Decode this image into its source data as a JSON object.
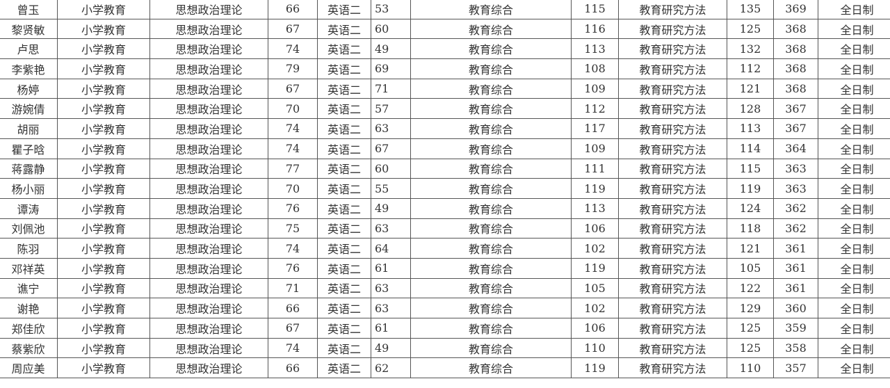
{
  "rows": [
    {
      "name": "曾玉",
      "major": "小学教育",
      "politics": "思想政治理论",
      "politics_score": "66",
      "english": "英语二",
      "english_score": "53",
      "subject3": "教育综合",
      "subject3_score": "115",
      "subject4": "教育研究方法",
      "subject4_score": "135",
      "total": "369",
      "mode": "全日制"
    },
    {
      "name": "黎贤敏",
      "major": "小学教育",
      "politics": "思想政治理论",
      "politics_score": "67",
      "english": "英语二",
      "english_score": "60",
      "subject3": "教育综合",
      "subject3_score": "116",
      "subject4": "教育研究方法",
      "subject4_score": "125",
      "total": "368",
      "mode": "全日制"
    },
    {
      "name": "卢思",
      "major": "小学教育",
      "politics": "思想政治理论",
      "politics_score": "74",
      "english": "英语二",
      "english_score": "49",
      "subject3": "教育综合",
      "subject3_score": "113",
      "subject4": "教育研究方法",
      "subject4_score": "132",
      "total": "368",
      "mode": "全日制"
    },
    {
      "name": "李紫艳",
      "major": "小学教育",
      "politics": "思想政治理论",
      "politics_score": "79",
      "english": "英语二",
      "english_score": "69",
      "subject3": "教育综合",
      "subject3_score": "108",
      "subject4": "教育研究方法",
      "subject4_score": "112",
      "total": "368",
      "mode": "全日制"
    },
    {
      "name": "杨婷",
      "major": "小学教育",
      "politics": "思想政治理论",
      "politics_score": "67",
      "english": "英语二",
      "english_score": "71",
      "subject3": "教育综合",
      "subject3_score": "109",
      "subject4": "教育研究方法",
      "subject4_score": "121",
      "total": "368",
      "mode": "全日制"
    },
    {
      "name": "游婉倩",
      "major": "小学教育",
      "politics": "思想政治理论",
      "politics_score": "70",
      "english": "英语二",
      "english_score": "57",
      "subject3": "教育综合",
      "subject3_score": "112",
      "subject4": "教育研究方法",
      "subject4_score": "128",
      "total": "367",
      "mode": "全日制"
    },
    {
      "name": "胡丽",
      "major": "小学教育",
      "politics": "思想政治理论",
      "politics_score": "74",
      "english": "英语二",
      "english_score": "63",
      "subject3": "教育综合",
      "subject3_score": "117",
      "subject4": "教育研究方法",
      "subject4_score": "113",
      "total": "367",
      "mode": "全日制"
    },
    {
      "name": "瞿子晗",
      "major": "小学教育",
      "politics": "思想政治理论",
      "politics_score": "74",
      "english": "英语二",
      "english_score": "67",
      "subject3": "教育综合",
      "subject3_score": "109",
      "subject4": "教育研究方法",
      "subject4_score": "114",
      "total": "364",
      "mode": "全日制"
    },
    {
      "name": "蒋露静",
      "major": "小学教育",
      "politics": "思想政治理论",
      "politics_score": "77",
      "english": "英语二",
      "english_score": "60",
      "subject3": "教育综合",
      "subject3_score": "111",
      "subject4": "教育研究方法",
      "subject4_score": "115",
      "total": "363",
      "mode": "全日制"
    },
    {
      "name": "杨小丽",
      "major": "小学教育",
      "politics": "思想政治理论",
      "politics_score": "70",
      "english": "英语二",
      "english_score": "55",
      "subject3": "教育综合",
      "subject3_score": "119",
      "subject4": "教育研究方法",
      "subject4_score": "119",
      "total": "363",
      "mode": "全日制"
    },
    {
      "name": "谭涛",
      "major": "小学教育",
      "politics": "思想政治理论",
      "politics_score": "76",
      "english": "英语二",
      "english_score": "49",
      "subject3": "教育综合",
      "subject3_score": "113",
      "subject4": "教育研究方法",
      "subject4_score": "124",
      "total": "362",
      "mode": "全日制"
    },
    {
      "name": "刘佩池",
      "major": "小学教育",
      "politics": "思想政治理论",
      "politics_score": "75",
      "english": "英语二",
      "english_score": "63",
      "subject3": "教育综合",
      "subject3_score": "106",
      "subject4": "教育研究方法",
      "subject4_score": "118",
      "total": "362",
      "mode": "全日制"
    },
    {
      "name": "陈羽",
      "major": "小学教育",
      "politics": "思想政治理论",
      "politics_score": "74",
      "english": "英语二",
      "english_score": "64",
      "subject3": "教育综合",
      "subject3_score": "102",
      "subject4": "教育研究方法",
      "subject4_score": "121",
      "total": "361",
      "mode": "全日制"
    },
    {
      "name": "邓祥英",
      "major": "小学教育",
      "politics": "思想政治理论",
      "politics_score": "76",
      "english": "英语二",
      "english_score": "61",
      "subject3": "教育综合",
      "subject3_score": "119",
      "subject4": "教育研究方法",
      "subject4_score": "105",
      "total": "361",
      "mode": "全日制"
    },
    {
      "name": "谯宁",
      "major": "小学教育",
      "politics": "思想政治理论",
      "politics_score": "71",
      "english": "英语二",
      "english_score": "63",
      "subject3": "教育综合",
      "subject3_score": "105",
      "subject4": "教育研究方法",
      "subject4_score": "122",
      "total": "361",
      "mode": "全日制"
    },
    {
      "name": "谢艳",
      "major": "小学教育",
      "politics": "思想政治理论",
      "politics_score": "66",
      "english": "英语二",
      "english_score": "63",
      "subject3": "教育综合",
      "subject3_score": "102",
      "subject4": "教育研究方法",
      "subject4_score": "129",
      "total": "360",
      "mode": "全日制"
    },
    {
      "name": "郑佳欣",
      "major": "小学教育",
      "politics": "思想政治理论",
      "politics_score": "67",
      "english": "英语二",
      "english_score": "61",
      "subject3": "教育综合",
      "subject3_score": "106",
      "subject4": "教育研究方法",
      "subject4_score": "125",
      "total": "359",
      "mode": "全日制"
    },
    {
      "name": "蔡紫欣",
      "major": "小学教育",
      "politics": "思想政治理论",
      "politics_score": "74",
      "english": "英语二",
      "english_score": "49",
      "subject3": "教育综合",
      "subject3_score": "110",
      "subject4": "教育研究方法",
      "subject4_score": "125",
      "total": "358",
      "mode": "全日制"
    },
    {
      "name": "周应美",
      "major": "小学教育",
      "politics": "思想政治理论",
      "politics_score": "66",
      "english": "英语二",
      "english_score": "62",
      "subject3": "教育综合",
      "subject3_score": "119",
      "subject4": "教育研究方法",
      "subject4_score": "110",
      "total": "357",
      "mode": "全日制"
    }
  ]
}
